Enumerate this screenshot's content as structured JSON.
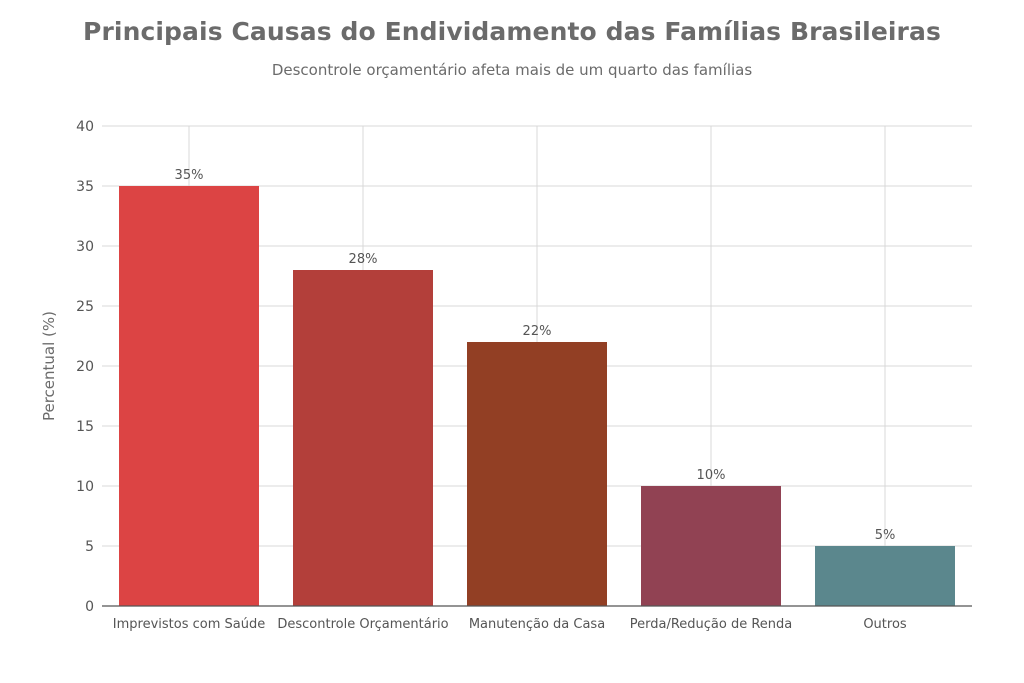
{
  "title": "Principais Causas do Endividamento das Famílias Brasileiras",
  "subtitle": "Descontrole orçamentário afeta mais de um quarto das famílias",
  "chart_data": {
    "type": "bar",
    "title": "Principais Causas do Endividamento das Famílias Brasileiras",
    "subtitle": "Descontrole orçamentário afeta mais de um quarto das famílias",
    "xlabel": "",
    "ylabel": "Percentual (%)",
    "categories": [
      "Imprevistos com Saúde",
      "Descontrole Orçamentário",
      "Manutenção da Casa",
      "Perda/Redução de Renda",
      "Outros"
    ],
    "values": [
      35,
      28,
      22,
      10,
      5
    ],
    "data_labels": [
      "35%",
      "28%",
      "22%",
      "10%",
      "5%"
    ],
    "colors": [
      "#dc4444",
      "#b33f3a",
      "#923f24",
      "#914253",
      "#5b878d"
    ],
    "ylim": [
      0,
      40
    ],
    "yticks": [
      0,
      5,
      10,
      15,
      20,
      25,
      30,
      35,
      40
    ],
    "grid": true,
    "legend": "none"
  }
}
